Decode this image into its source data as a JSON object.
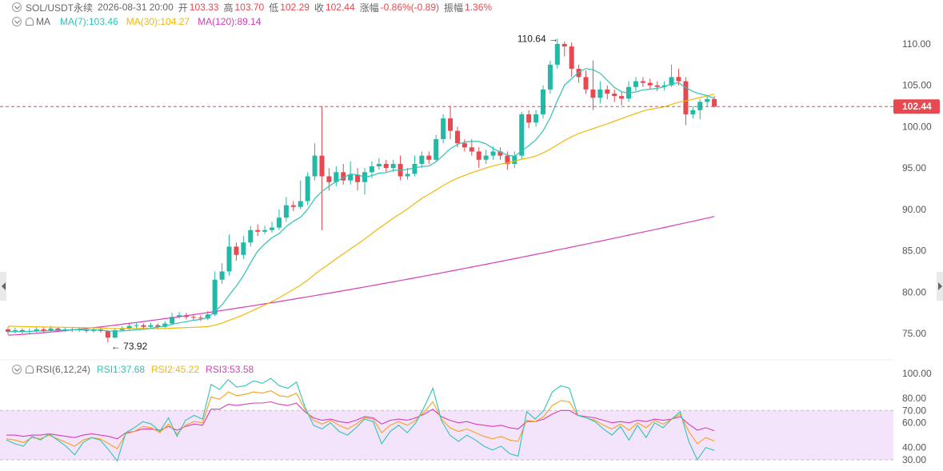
{
  "header": {
    "symbol": "SOL/USDT永续",
    "datetime": "2026-08-31 20:00",
    "open_label": "开",
    "open": "103.33",
    "high_label": "高",
    "high": "103.70",
    "low_label": "低",
    "low": "102.29",
    "close_label": "收",
    "close": "102.44",
    "change_label": "涨幅",
    "change": "-0.86%(-0.89)",
    "amp_label": "振幅",
    "amp": "1.36%"
  },
  "ma_legend": {
    "label": "MA",
    "ma7": "MA(7):103.46",
    "ma30": "MA(30):104.27",
    "ma120": "MA(120):89.14"
  },
  "rsi_legend": {
    "label": "RSI(6,12,24)",
    "rsi1": "RSI1:37.68",
    "rsi2": "RSI2:45.22",
    "rsi3": "RSI3:53.58"
  },
  "price_axis": [
    "110.00",
    "105.00",
    "100.00",
    "95.00",
    "90.00",
    "85.00",
    "80.00",
    "75.00"
  ],
  "rsi_axis": [
    "100.00",
    "80.00",
    "70.00",
    "60.00",
    "40.00",
    "30.00"
  ],
  "last_price": "102.44",
  "annotations": {
    "high": "110.64",
    "low": "73.92"
  },
  "colors": {
    "up": "#22b9a6",
    "down": "#e8484f",
    "ma7": "#2ec4b6",
    "ma30": "#f0b90b",
    "ma120": "#d63fb7",
    "rsi1": "#2ec4b6",
    "rsi2": "#f7a21b",
    "rsi3": "#d63fb7",
    "rsi_band": "#f3e4fb"
  },
  "chart_data": {
    "type": "candlestick",
    "interval_note": "SOL/USDT perpetual",
    "price_range": [
      73,
      112
    ],
    "candles": [
      [
        75.5,
        75.2,
        75.8,
        74.9
      ],
      [
        75.3,
        75.4,
        75.7,
        75.0
      ],
      [
        75.4,
        75.2,
        75.6,
        75.0
      ],
      [
        75.2,
        75.3,
        75.6,
        75.0
      ],
      [
        75.3,
        75.5,
        75.8,
        75.1
      ],
      [
        75.5,
        75.3,
        75.7,
        75.1
      ],
      [
        75.3,
        75.6,
        75.9,
        75.1
      ],
      [
        75.6,
        75.4,
        75.8,
        75.2
      ],
      [
        75.4,
        75.5,
        75.8,
        75.2
      ],
      [
        75.5,
        75.4,
        75.7,
        75.2
      ],
      [
        75.4,
        75.5,
        75.7,
        75.2
      ],
      [
        75.5,
        75.3,
        75.7,
        75.1
      ],
      [
        75.3,
        75.5,
        75.7,
        75.1
      ],
      [
        75.5,
        75.3,
        75.8,
        75.1
      ],
      [
        75.3,
        74.5,
        75.4,
        73.92
      ],
      [
        74.5,
        75.4,
        75.6,
        74.4
      ],
      [
        75.4,
        75.6,
        75.9,
        75.3
      ],
      [
        75.6,
        75.9,
        76.2,
        75.4
      ],
      [
        75.9,
        76.0,
        76.3,
        75.6
      ],
      [
        76.0,
        75.8,
        76.2,
        75.5
      ],
      [
        75.8,
        76.0,
        76.3,
        75.6
      ],
      [
        76.0,
        75.8,
        76.2,
        75.5
      ],
      [
        75.8,
        76.2,
        76.5,
        75.6
      ],
      [
        76.2,
        77.0,
        77.5,
        76.0
      ],
      [
        77.0,
        77.2,
        77.6,
        76.8
      ],
      [
        77.2,
        77.0,
        77.5,
        76.7
      ],
      [
        77.0,
        76.9,
        77.3,
        76.6
      ],
      [
        76.9,
        76.8,
        77.2,
        76.5
      ],
      [
        76.8,
        77.3,
        77.7,
        76.6
      ],
      [
        77.3,
        81.5,
        82.5,
        77.1
      ],
      [
        81.5,
        82.5,
        83.5,
        81.0
      ],
      [
        82.5,
        85.5,
        87.0,
        82.0
      ],
      [
        85.5,
        84.5,
        86.0,
        83.8
      ],
      [
        84.5,
        86.0,
        86.8,
        84.0
      ],
      [
        86.0,
        87.5,
        88.0,
        85.5
      ],
      [
        87.5,
        87.3,
        88.2,
        86.8
      ],
      [
        87.3,
        87.5,
        88.0,
        87.0
      ],
      [
        87.5,
        87.8,
        88.5,
        87.2
      ],
      [
        87.8,
        89.0,
        90.0,
        87.5
      ],
      [
        89.0,
        90.5,
        91.5,
        88.5
      ],
      [
        90.5,
        90.3,
        91.0,
        89.8
      ],
      [
        90.3,
        91.0,
        93.5,
        90.0
      ],
      [
        91.0,
        94.0,
        94.5,
        90.5
      ],
      [
        94.0,
        96.5,
        98.0,
        93.5
      ],
      [
        96.5,
        94.0,
        102.5,
        87.5
      ],
      [
        94.0,
        93.3,
        95.0,
        92.3
      ],
      [
        93.3,
        94.5,
        95.2,
        92.8
      ],
      [
        94.5,
        93.5,
        95.5,
        93.0
      ],
      [
        93.5,
        94.2,
        95.8,
        93.0
      ],
      [
        94.2,
        93.3,
        95.0,
        92.3
      ],
      [
        93.3,
        94.5,
        95.0,
        91.8
      ],
      [
        94.5,
        95.2,
        95.8,
        93.8
      ],
      [
        95.2,
        95.5,
        96.2,
        94.8
      ],
      [
        95.5,
        95.0,
        96.0,
        94.5
      ],
      [
        95.0,
        95.5,
        96.0,
        94.5
      ],
      [
        95.5,
        94.0,
        96.5,
        93.5
      ],
      [
        94.0,
        94.3,
        95.0,
        93.6
      ],
      [
        94.3,
        95.5,
        96.5,
        94.0
      ],
      [
        95.5,
        96.5,
        97.0,
        95.0
      ],
      [
        96.5,
        96.0,
        97.0,
        95.5
      ],
      [
        96.0,
        98.5,
        99.0,
        95.8
      ],
      [
        98.5,
        101.0,
        101.5,
        98.0
      ],
      [
        101.0,
        99.5,
        102.5,
        98.5
      ],
      [
        99.5,
        98.0,
        100.0,
        97.5
      ],
      [
        98.0,
        97.5,
        98.5,
        97.0
      ],
      [
        97.5,
        97.0,
        98.5,
        96.5
      ],
      [
        97.0,
        96.0,
        97.5,
        95.0
      ],
      [
        96.0,
        96.5,
        97.2,
        95.5
      ],
      [
        96.5,
        97.0,
        97.6,
        96.0
      ],
      [
        97.0,
        96.5,
        97.5,
        96.0
      ],
      [
        96.5,
        95.5,
        97.0,
        94.8
      ],
      [
        95.5,
        96.5,
        97.0,
        95.0
      ],
      [
        96.5,
        101.5,
        101.8,
        96.0
      ],
      [
        101.5,
        100.5,
        102.0,
        99.8
      ],
      [
        100.5,
        101.5,
        102.0,
        100.0
      ],
      [
        101.5,
        104.5,
        105.0,
        101.0
      ],
      [
        104.5,
        107.5,
        108.0,
        104.0
      ],
      [
        107.5,
        110.0,
        110.64,
        107.0
      ],
      [
        110.0,
        109.7,
        110.3,
        108.5
      ],
      [
        109.7,
        107.0,
        110.2,
        106.0
      ],
      [
        107.0,
        106.0,
        107.5,
        105.3
      ],
      [
        106.0,
        104.5,
        106.8,
        104.0
      ],
      [
        104.5,
        103.5,
        108.0,
        102.0
      ],
      [
        103.5,
        104.5,
        105.5,
        102.8
      ],
      [
        104.5,
        104.0,
        105.0,
        103.3
      ],
      [
        104.0,
        103.7,
        104.5,
        103.0
      ],
      [
        103.7,
        103.4,
        104.2,
        102.6
      ],
      [
        103.4,
        104.8,
        105.5,
        103.0
      ],
      [
        104.8,
        105.5,
        106.0,
        104.3
      ],
      [
        105.5,
        105.3,
        106.0,
        104.8
      ],
      [
        105.3,
        105.0,
        105.8,
        104.5
      ],
      [
        105.0,
        104.8,
        105.5,
        104.3
      ],
      [
        104.8,
        105.0,
        105.5,
        104.4
      ],
      [
        105.0,
        106.0,
        107.5,
        104.8
      ],
      [
        106.0,
        105.5,
        107.0,
        105.0
      ],
      [
        105.5,
        101.5,
        106.0,
        100.2
      ],
      [
        101.5,
        102.0,
        102.5,
        101.0
      ],
      [
        102.0,
        103.0,
        103.3,
        100.9
      ],
      [
        103.0,
        103.33,
        103.8,
        102.5
      ],
      [
        103.33,
        102.44,
        103.7,
        102.29
      ]
    ],
    "ma7_endpoint": 103.46,
    "ma30_endpoint": 104.27,
    "ma120_endpoint": 89.14,
    "rsi": {
      "range": [
        30,
        100
      ],
      "rsi1": [
        46,
        43,
        41,
        49,
        46,
        51,
        46,
        41,
        34,
        44,
        48,
        46,
        38,
        29,
        52,
        56,
        61,
        59,
        53,
        64,
        49,
        62,
        66,
        63,
        91,
        87,
        95,
        89,
        90,
        94,
        92,
        96,
        90,
        88,
        93,
        73,
        58,
        55,
        60,
        53,
        50,
        56,
        63,
        61,
        43,
        53,
        58,
        52,
        60,
        73,
        88,
        62,
        50,
        45,
        50,
        46,
        41,
        38,
        41,
        35,
        33,
        69,
        63,
        70,
        85,
        90,
        88,
        66,
        64,
        61,
        55,
        50,
        57,
        46,
        58,
        48,
        60,
        56,
        63,
        69,
        45,
        30,
        40,
        37.68
      ],
      "rsi2": [
        47,
        46,
        44,
        48,
        47,
        50,
        47,
        44,
        41,
        46,
        48,
        47,
        43,
        39,
        51,
        53,
        57,
        56,
        52,
        59,
        51,
        58,
        61,
        60,
        81,
        79,
        85,
        82,
        83,
        85,
        84,
        86,
        82,
        81,
        84,
        71,
        62,
        59,
        62,
        58,
        55,
        59,
        64,
        63,
        52,
        58,
        61,
        58,
        62,
        69,
        77,
        63,
        56,
        53,
        55,
        52,
        49,
        47,
        49,
        46,
        45,
        62,
        61,
        65,
        74,
        78,
        77,
        66,
        64,
        62,
        58,
        55,
        59,
        54,
        60,
        56,
        62,
        59,
        63,
        67,
        53,
        43,
        48,
        45.22
      ],
      "rsi3": [
        50,
        50,
        49,
        50,
        50,
        51,
        50,
        49,
        48,
        50,
        51,
        50,
        49,
        47,
        52,
        53,
        55,
        55,
        54,
        57,
        54,
        57,
        59,
        58,
        71,
        71,
        75,
        74,
        75,
        76,
        76,
        77,
        75,
        74,
        76,
        69,
        64,
        62,
        63,
        61,
        60,
        62,
        65,
        64,
        59,
        62,
        63,
        62,
        64,
        67,
        71,
        65,
        62,
        60,
        61,
        59,
        58,
        57,
        58,
        56,
        55,
        61,
        61,
        63,
        67,
        70,
        70,
        66,
        65,
        64,
        62,
        60,
        61,
        60,
        62,
        61,
        63,
        62,
        63,
        65,
        59,
        54,
        56,
        53.58
      ]
    }
  }
}
